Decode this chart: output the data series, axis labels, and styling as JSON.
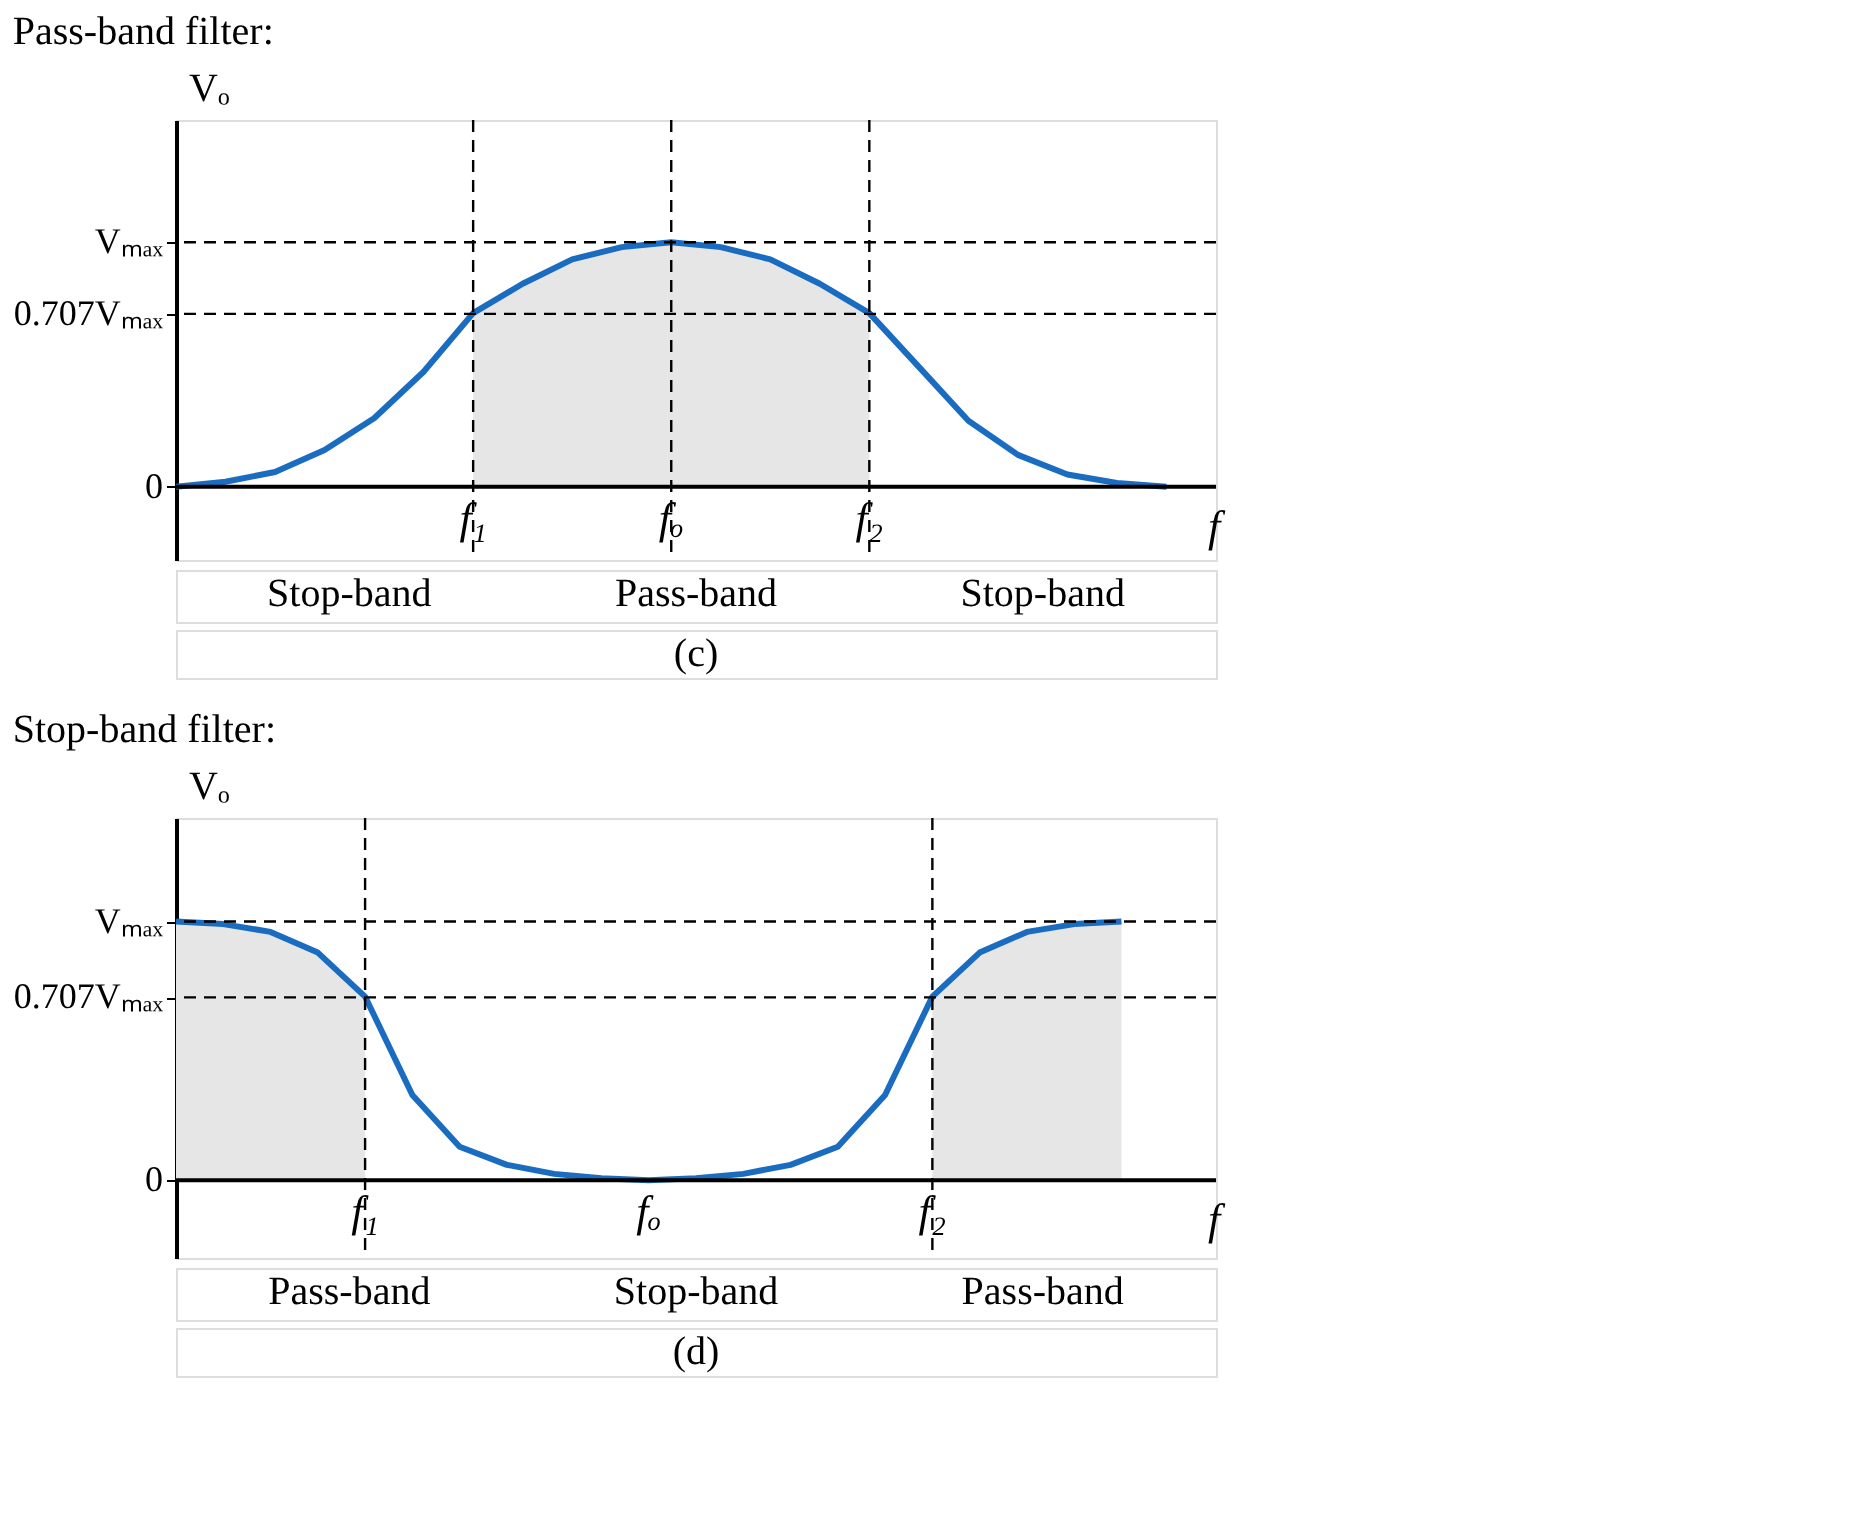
{
  "chart_data": [
    {
      "type": "line",
      "title": "Pass-band filter:",
      "xlabel": "f",
      "ylabel": "Vₒ",
      "ylim": [
        -0.3,
        1.5
      ],
      "categories": [
        null,
        null,
        null,
        null,
        null,
        null,
        "f₁",
        null,
        null,
        null,
        "fₒ",
        null,
        null,
        null,
        "f₂",
        null,
        null,
        null,
        null,
        null,
        null,
        null
      ],
      "yticks": [
        {
          "value": 0,
          "label": "0"
        },
        {
          "value": 0.707,
          "label": "0.707Vₘₐₓ"
        },
        {
          "value": 1,
          "label": "Vₘₐₓ"
        }
      ],
      "series": [
        {
          "type": "area",
          "color": "#e6e6e6",
          "values": [
            null,
            null,
            null,
            null,
            null,
            null,
            0.71,
            0.83,
            0.93,
            0.98,
            1,
            0.98,
            0.93,
            0.83,
            0.71,
            null,
            null,
            null,
            null,
            null,
            null,
            null
          ]
        },
        {
          "color": "#1a6cc0",
          "values": [
            0,
            0.02,
            0.06,
            0.15,
            0.28,
            0.47,
            0.71,
            0.83,
            0.93,
            0.98,
            1,
            0.98,
            0.93,
            0.83,
            0.71,
            0.49,
            0.27,
            0.13,
            0.05,
            0.015,
            0,
            null
          ]
        }
      ],
      "ref_lines": [
        {
          "axis": "y",
          "value": 1,
          "color": "#000000",
          "line_style": "dashed"
        },
        {
          "axis": "y",
          "value": 0.707,
          "color": "#000000",
          "line_style": "dashed"
        },
        {
          "axis": "x",
          "value": "f₁",
          "color": "#000000",
          "line_style": "dashed"
        },
        {
          "axis": "x",
          "value": "fₒ",
          "color": "#000000",
          "line_style": "dashed"
        },
        {
          "axis": "x",
          "value": "f₂",
          "color": "#000000",
          "line_style": "dashed"
        }
      ],
      "annotations": [
        "Stop-band",
        "Pass-band",
        "Stop-band",
        "(c)"
      ],
      "line_style": "solid"
    },
    {
      "type": "line",
      "title": "Stop-band filter:",
      "xlabel": "f",
      "ylabel": "Vₒ",
      "ylim": [
        -0.3,
        1.4
      ],
      "categories": [
        null,
        null,
        null,
        null,
        "f₁",
        null,
        null,
        null,
        null,
        null,
        "fₒ",
        null,
        null,
        null,
        null,
        null,
        "f₂",
        null,
        null,
        null,
        null,
        null,
        null
      ],
      "yticks": [
        {
          "value": 0,
          "label": "0"
        },
        {
          "value": 0.707,
          "label": "0.707Vₘₐₓ"
        },
        {
          "value": 1,
          "label": "Vₘₐₓ"
        }
      ],
      "series": [
        {
          "type": "area",
          "color": "#e6e6e6",
          "values": [
            1,
            0.99,
            0.96,
            0.88,
            0.71,
            null,
            null,
            null,
            null,
            null,
            null,
            null,
            null,
            null,
            null,
            null,
            null,
            null,
            null,
            null,
            null,
            null,
            null
          ]
        },
        {
          "type": "area",
          "color": "#e6e6e6",
          "values": [
            null,
            null,
            null,
            null,
            null,
            null,
            null,
            null,
            null,
            null,
            null,
            null,
            null,
            null,
            null,
            null,
            0.71,
            0.88,
            0.96,
            0.99,
            1,
            null,
            null
          ]
        },
        {
          "color": "#1a6cc0",
          "values": [
            1,
            0.99,
            0.96,
            0.88,
            0.71,
            0.33,
            0.13,
            0.06,
            0.025,
            0.008,
            0,
            0.008,
            0.025,
            0.06,
            0.13,
            0.33,
            0.71,
            0.88,
            0.96,
            0.99,
            1,
            null,
            null
          ]
        }
      ],
      "ref_lines": [
        {
          "axis": "y",
          "value": 1,
          "color": "#000000",
          "line_style": "dashed"
        },
        {
          "axis": "y",
          "value": 0.707,
          "color": "#000000",
          "line_style": "dashed"
        },
        {
          "axis": "x",
          "value": "f₁",
          "color": "#000000",
          "line_style": "dashed"
        },
        {
          "axis": "x",
          "value": "f₂",
          "color": "#000000",
          "line_style": "dashed"
        }
      ],
      "annotations": [
        "Pass-band",
        "Stop-band",
        "Pass-band",
        "(d)"
      ],
      "line_style": "solid"
    }
  ]
}
